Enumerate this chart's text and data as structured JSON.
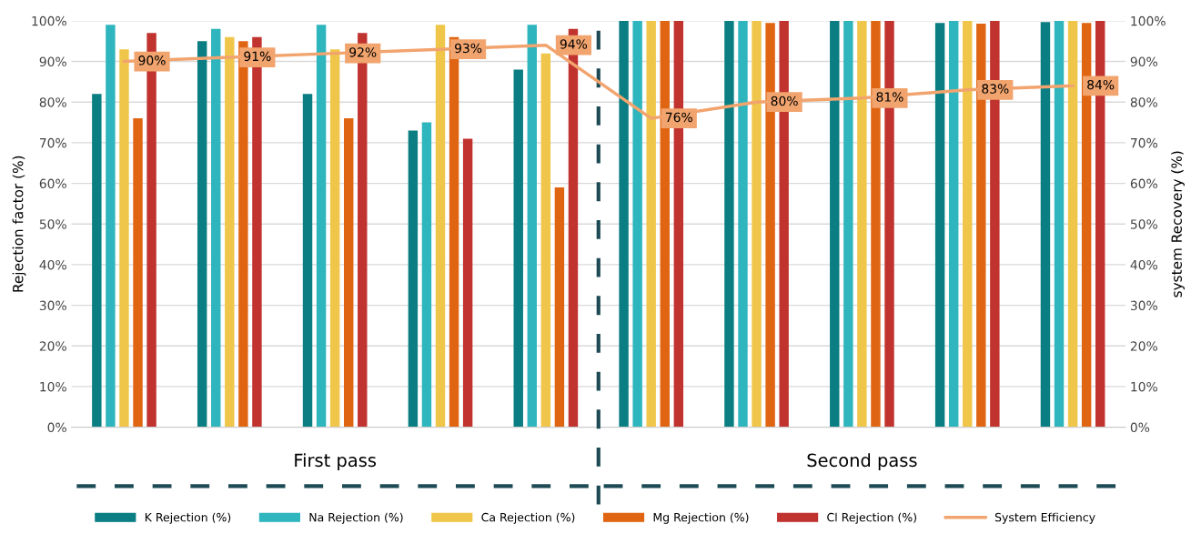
{
  "chart_data": {
    "type": "bar",
    "categories": [
      null,
      null,
      null,
      null,
      null,
      null,
      null,
      null,
      null,
      null
    ],
    "ylabel": "Rejection factor (%)",
    "y2label": "system Recovery (%)",
    "ylim": [
      0,
      100
    ],
    "yticks": [
      {
        "value": 0,
        "label": "0%"
      },
      {
        "value": 10,
        "label": "10%"
      },
      {
        "value": 20,
        "label": "20%"
      },
      {
        "value": 30,
        "label": "30%"
      },
      {
        "value": 40,
        "label": "40%"
      },
      {
        "value": 50,
        "label": "50%"
      },
      {
        "value": 60,
        "label": "60%"
      },
      {
        "value": 70,
        "label": "70%"
      },
      {
        "value": 80,
        "label": "80%"
      },
      {
        "value": 90,
        "label": "90%"
      },
      {
        "value": 100,
        "label": "100%"
      }
    ],
    "y2lim": [
      0,
      100
    ],
    "y2ticks": [
      {
        "value": 0,
        "label": "0%"
      },
      {
        "value": 10,
        "label": "10%"
      },
      {
        "value": 20,
        "label": "20%"
      },
      {
        "value": 30,
        "label": "30%"
      },
      {
        "value": 40,
        "label": "40%"
      },
      {
        "value": 50,
        "label": "50%"
      },
      {
        "value": 60,
        "label": "60%"
      },
      {
        "value": 70,
        "label": "70%"
      },
      {
        "value": 80,
        "label": "80%"
      },
      {
        "value": 90,
        "label": "90%"
      },
      {
        "value": 100,
        "label": "100%"
      }
    ],
    "series": [
      {
        "name": "K Rejection (%)",
        "color": "#0a7e82",
        "values": [
          82,
          95,
          82,
          73,
          88,
          100,
          100,
          100,
          99.5,
          99.7
        ]
      },
      {
        "name": "Na Rejection (%)",
        "color": "#2fb5bd",
        "values": [
          99,
          98,
          99,
          75,
          99,
          100,
          100,
          100,
          100,
          100
        ]
      },
      {
        "name": "Ca Rejection (%)",
        "color": "#f0c64a",
        "values": [
          93,
          96,
          93,
          99,
          92,
          100,
          100,
          100,
          100,
          100
        ]
      },
      {
        "name": "Mg Rejection (%)",
        "color": "#e06512",
        "values": [
          76,
          95,
          76,
          96,
          59,
          100,
          99.5,
          100,
          99.3,
          99.5
        ]
      },
      {
        "name": "Cl Rejection (%)",
        "color": "#c0332f",
        "values": [
          97,
          96,
          97,
          71,
          98,
          100,
          100,
          100,
          100,
          100
        ]
      },
      {
        "name": "System Efficiency",
        "type": "line",
        "axis": "y2",
        "color": "#f2a46e",
        "values": [
          90,
          91,
          92,
          93,
          94,
          76,
          80,
          81,
          83,
          84
        ],
        "value_labels": [
          "90%",
          "91%",
          "92%",
          "93%",
          "94%",
          "76%",
          "80%",
          "81%",
          "83%",
          "84%"
        ]
      }
    ],
    "annotations": [
      "First pass",
      "Second pass"
    ],
    "grid": "y",
    "legend": "bottom"
  }
}
